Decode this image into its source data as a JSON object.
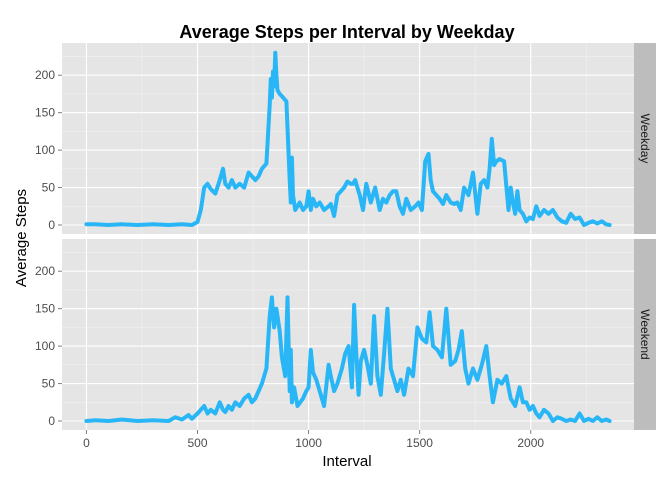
{
  "chart_data": {
    "type": "line",
    "title": "Average Steps per Interval by Weekday",
    "xlabel": "Interval",
    "ylabel": "Average Steps",
    "xlim": [
      -110,
      2465
    ],
    "ylim": [
      -12,
      243
    ],
    "x_ticks": [
      0,
      500,
      1000,
      1500,
      2000
    ],
    "y_ticks": [
      0,
      50,
      100,
      150,
      200
    ],
    "grid": true,
    "line_color": "#29b6f6",
    "panel_background": "#e5e5e5",
    "strip_background": "#bdbdbd",
    "panels": [
      {
        "label": "Weekday",
        "x": [
          0,
          40,
          100,
          160,
          230,
          300,
          370,
          430,
          475,
          500,
          515,
          530,
          545,
          560,
          580,
          600,
          615,
          625,
          640,
          655,
          670,
          690,
          710,
          730,
          745,
          760,
          775,
          790,
          810,
          825,
          830,
          835,
          840,
          845,
          850,
          855,
          860,
          870,
          880,
          900,
          910,
          915,
          920,
          925,
          930,
          940,
          950,
          960,
          975,
          990,
          1000,
          1010,
          1020,
          1035,
          1050,
          1070,
          1090,
          1100,
          1115,
          1130,
          1145,
          1160,
          1175,
          1190,
          1200,
          1210,
          1220,
          1230,
          1245,
          1260,
          1280,
          1300,
          1320,
          1335,
          1350,
          1365,
          1380,
          1395,
          1410,
          1425,
          1440,
          1460,
          1480,
          1495,
          1510,
          1525,
          1540,
          1550,
          1560,
          1575,
          1590,
          1605,
          1620,
          1640,
          1655,
          1670,
          1685,
          1700,
          1720,
          1740,
          1760,
          1775,
          1790,
          1805,
          1815,
          1825,
          1835,
          1845,
          1860,
          1880,
          1900,
          1910,
          1920,
          1930,
          1940,
          1950,
          1965,
          1980,
          1995,
          2010,
          2025,
          2040,
          2060,
          2080,
          2100,
          2120,
          2140,
          2160,
          2180,
          2200,
          2220,
          2240,
          2260,
          2280,
          2300,
          2320,
          2340,
          2355
        ],
        "y": [
          1,
          1,
          0,
          1,
          0,
          1,
          0,
          1,
          0,
          4,
          20,
          50,
          55,
          48,
          42,
          60,
          75,
          55,
          50,
          60,
          50,
          55,
          50,
          70,
          65,
          60,
          65,
          75,
          82,
          160,
          195,
          170,
          205,
          185,
          230,
          200,
          180,
          175,
          172,
          165,
          95,
          60,
          30,
          90,
          40,
          20,
          25,
          30,
          20,
          25,
          45,
          20,
          35,
          25,
          30,
          20,
          25,
          28,
          12,
          40,
          45,
          50,
          58,
          55,
          55,
          60,
          50,
          40,
          20,
          55,
          30,
          50,
          20,
          35,
          30,
          40,
          45,
          45,
          25,
          15,
          35,
          20,
          25,
          30,
          20,
          85,
          95,
          60,
          45,
          40,
          35,
          28,
          40,
          30,
          28,
          30,
          20,
          50,
          40,
          70,
          15,
          55,
          60,
          50,
          75,
          115,
          80,
          85,
          88,
          85,
          20,
          50,
          30,
          15,
          45,
          20,
          15,
          5,
          10,
          8,
          25,
          12,
          20,
          15,
          20,
          10,
          5,
          3,
          15,
          8,
          10,
          0,
          3,
          5,
          2,
          5,
          1,
          0
        ]
      },
      {
        "label": "Weekend",
        "x": [
          0,
          40,
          100,
          160,
          230,
          300,
          370,
          400,
          430,
          460,
          475,
          500,
          515,
          530,
          545,
          560,
          580,
          600,
          615,
          625,
          640,
          655,
          670,
          690,
          710,
          730,
          745,
          760,
          775,
          790,
          810,
          825,
          835,
          845,
          855,
          870,
          880,
          895,
          905,
          915,
          920,
          925,
          935,
          950,
          975,
          990,
          1000,
          1010,
          1020,
          1035,
          1050,
          1070,
          1090,
          1100,
          1115,
          1130,
          1150,
          1165,
          1180,
          1195,
          1205,
          1215,
          1225,
          1235,
          1250,
          1265,
          1280,
          1295,
          1310,
          1325,
          1340,
          1355,
          1370,
          1385,
          1400,
          1415,
          1430,
          1450,
          1470,
          1490,
          1510,
          1530,
          1545,
          1560,
          1580,
          1600,
          1620,
          1640,
          1660,
          1675,
          1690,
          1705,
          1720,
          1740,
          1760,
          1780,
          1800,
          1815,
          1830,
          1850,
          1870,
          1890,
          1910,
          1930,
          1950,
          1965,
          1980,
          1995,
          2010,
          2025,
          2040,
          2060,
          2080,
          2100,
          2120,
          2140,
          2160,
          2180,
          2200,
          2220,
          2240,
          2260,
          2280,
          2300,
          2320,
          2340,
          2355
        ],
        "y": [
          0,
          1,
          0,
          2,
          0,
          1,
          0,
          5,
          2,
          8,
          3,
          10,
          15,
          20,
          10,
          15,
          10,
          25,
          15,
          12,
          20,
          15,
          25,
          20,
          30,
          35,
          25,
          30,
          40,
          50,
          70,
          140,
          165,
          125,
          150,
          120,
          85,
          60,
          165,
          40,
          95,
          25,
          45,
          20,
          30,
          40,
          45,
          95,
          65,
          55,
          40,
          20,
          75,
          60,
          40,
          50,
          70,
          90,
          100,
          45,
          155,
          90,
          35,
          80,
          95,
          75,
          50,
          140,
          60,
          35,
          90,
          150,
          70,
          55,
          40,
          55,
          35,
          70,
          60,
          125,
          110,
          105,
          145,
          100,
          95,
          85,
          150,
          75,
          80,
          95,
          120,
          70,
          50,
          70,
          55,
          75,
          100,
          60,
          25,
          55,
          50,
          60,
          30,
          20,
          45,
          25,
          25,
          15,
          20,
          10,
          5,
          15,
          10,
          0,
          5,
          3,
          0,
          2,
          0,
          10,
          0,
          3,
          0,
          5,
          0,
          2,
          0
        ]
      }
    ]
  }
}
